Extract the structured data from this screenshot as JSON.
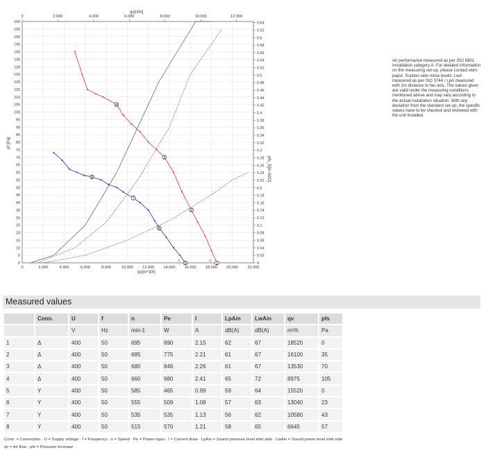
{
  "chart_data": {
    "type": "line",
    "title": "",
    "axes": {
      "bottom": {
        "label": "qv[m^3/h]",
        "range": [
          0,
          22000
        ],
        "ticks": [
          "0",
          "2.000",
          "4.000",
          "6.000",
          "8.000",
          "10.000",
          "12.000",
          "14.000",
          "16.000",
          "18.000",
          "20.000",
          "22.000"
        ]
      },
      "top": {
        "label": "qv[cfm]",
        "range": [
          0,
          12949
        ],
        "ticks": [
          "0",
          "2.000",
          "4.000",
          "6.000",
          "8.000",
          "10.000",
          "12.000"
        ]
      },
      "left": {
        "label": "pf [Pa]",
        "range": [
          0,
          160
        ],
        "ticks": [
          "0",
          "5",
          "10",
          "15",
          "20",
          "25",
          "30",
          "35",
          "40",
          "45",
          "50",
          "55",
          "60",
          "65",
          "70",
          "75",
          "80",
          "85",
          "90",
          "95",
          "100",
          "105",
          "110",
          "115",
          "120",
          "125",
          "130",
          "135",
          "140",
          "145",
          "150",
          "155",
          "160"
        ]
      },
      "right": {
        "label": "pfs_E[in H2O]",
        "range": [
          0,
          0.643
        ],
        "ticks": [
          "0",
          "0.02",
          "0.04",
          "0.06",
          "0.08",
          "0.1",
          "0.12",
          "0.14",
          "0.16",
          "0.18",
          "0.2",
          "0.22",
          "0.24",
          "0.26",
          "0.28",
          "0.3",
          "0.32",
          "0.34",
          "0.36",
          "0.38",
          "0.4",
          "0.42",
          "0.44",
          "0.46",
          "0.48",
          "0.5",
          "0.52",
          "0.54",
          "0.56",
          "0.58",
          "0.6",
          "0.62",
          "0.64"
        ]
      }
    },
    "grid": true,
    "series": [
      {
        "color": "#e8463f",
        "end_label": "4-...",
        "x": [
          5000,
          5700,
          6200,
          7000,
          7700,
          8975,
          9600,
          10400,
          11200,
          12000,
          12800,
          13530,
          14400,
          15200,
          16100,
          16700,
          17400,
          18000,
          18520
        ],
        "y": [
          140,
          125,
          115,
          112,
          110,
          105,
          98,
          92,
          87,
          80,
          75,
          70,
          60,
          47,
          35,
          27,
          18,
          8,
          0
        ]
      },
      {
        "color": "#3a40c8",
        "end_label": "Y-...",
        "x": [
          3000,
          3800,
          4500,
          5200,
          5900,
          6645,
          7500,
          8200,
          9000,
          9600,
          10580,
          11200,
          12000,
          12600,
          13040,
          13700,
          14400,
          15000,
          15520
        ],
        "y": [
          73,
          68,
          62,
          60,
          58,
          57,
          55,
          52,
          50,
          47,
          43,
          40,
          35,
          28,
          23,
          17,
          10,
          5,
          0
        ]
      },
      {
        "color": "#555555",
        "name": "",
        "x": [
          800,
          3000,
          6000,
          9000,
          11000,
          13000,
          16500,
          18000
        ],
        "y": [
          0,
          5,
          25,
          60,
          90,
          120,
          160,
          160
        ]
      },
      {
        "color": "#555555",
        "name": "",
        "x": [
          1500,
          5000,
          8000,
          11000,
          14000,
          16000,
          19000
        ],
        "y": [
          0,
          10,
          27,
          55,
          90,
          125,
          155
        ]
      },
      {
        "color": "#555555",
        "name": "",
        "x": [
          2000,
          6000,
          10000,
          14000,
          18000,
          20000,
          21500
        ],
        "y": [
          0,
          5,
          15,
          28,
          45,
          55,
          60
        ]
      }
    ],
    "point_labels": [
      {
        "label": "4",
        "x": 8975,
        "y": 105
      },
      {
        "label": "3",
        "x": 13530,
        "y": 70
      },
      {
        "label": "2",
        "x": 16100,
        "y": 35
      },
      {
        "label": "1",
        "x": 18520,
        "y": 0
      },
      {
        "label": "8",
        "x": 6645,
        "y": 57
      },
      {
        "label": "7",
        "x": 10580,
        "y": 43
      },
      {
        "label": "6",
        "x": 13040,
        "y": 23
      },
      {
        "label": "5",
        "x": 15520,
        "y": 0
      }
    ]
  },
  "note": "Air performance measured as per ISO 5801 Installation category A. For detailed information on the measuring set-up, please contact ebm-papst. Suction-side noise levels: LwA measured as per ISO 3744 / LpA measured with 1m distance to fan axis. The values given are valid under the measuring conditions mentioned above and may vary according to the actual installation situation. With any deviation from the standard set-up, the specific values have to be checked and reviewed with the unit installed.",
  "measured": {
    "title": "Measured values",
    "headers": [
      "",
      "Conn.",
      "U",
      "f",
      "n",
      "Pe",
      "I",
      "LpAin",
      "LwAin",
      "qv",
      "pfs"
    ],
    "units": [
      "",
      "",
      "V",
      "Hz",
      "min-1",
      "W",
      "A",
      "dB(A)",
      "dB(A)",
      "m³/h",
      "Pa"
    ],
    "rows": [
      [
        "1",
        "Δ",
        "400",
        "50",
        "695",
        "690",
        "2.15",
        "62",
        "67",
        "18520",
        "0"
      ],
      [
        "2",
        "Δ",
        "400",
        "50",
        "685",
        "775",
        "2.21",
        "61",
        "67",
        "16100",
        "35"
      ],
      [
        "3",
        "Δ",
        "400",
        "50",
        "680",
        "846",
        "2.26",
        "61",
        "67",
        "13530",
        "70"
      ],
      [
        "4",
        "Δ",
        "400",
        "50",
        "660",
        "980",
        "2.41",
        "65",
        "72",
        "8975",
        "105"
      ],
      [
        "5",
        "Y",
        "400",
        "50",
        "585",
        "465",
        "0.99",
        "59",
        "64",
        "15520",
        "0"
      ],
      [
        "6",
        "Y",
        "400",
        "50",
        "555",
        "509",
        "1.08",
        "57",
        "63",
        "13040",
        "23"
      ],
      [
        "7",
        "Y",
        "400",
        "50",
        "535",
        "535",
        "1.13",
        "56",
        "62",
        "10580",
        "43"
      ],
      [
        "8",
        "Y",
        "400",
        "50",
        "515",
        "570",
        "1.21",
        "58",
        "65",
        "6645",
        "57"
      ]
    ]
  },
  "legend_line1": "Conn. = Connection · U = Supply voltage · f = Frequency · n = Speed · Pe = Power input · I = Current draw · LpAin = Sound pressure level inlet side · LwAin = Sound power level inlet side",
  "legend_line2": "qv = Air flow · pfs = Pressure increase"
}
